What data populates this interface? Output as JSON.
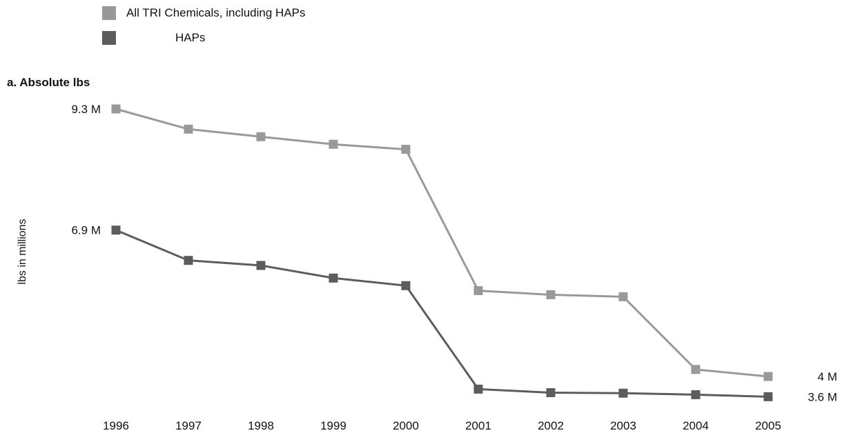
{
  "legend": {
    "all_label": "All TRI Chemicals, including HAPs",
    "haps_label": "HAPs"
  },
  "colors": {
    "all": "#999999",
    "haps": "#5c5c5c"
  },
  "chart_data": {
    "type": "line",
    "title": "",
    "subtitle": "a. Absolute lbs",
    "xlabel": "",
    "ylabel": "lbs in millions",
    "categories": [
      "1996",
      "1997",
      "1998",
      "1999",
      "2000",
      "2001",
      "2002",
      "2003",
      "2004",
      "2005"
    ],
    "ylim": [
      3.4,
      9.3
    ],
    "grid": false,
    "legend_position": "top-left",
    "series": [
      {
        "name": "All TRI Chemicals, including HAPs",
        "values": [
          9.3,
          8.9,
          8.75,
          8.6,
          8.5,
          5.7,
          5.62,
          5.58,
          4.14,
          4.0
        ],
        "end_labels": {
          "first": "9.3 M",
          "last": "4 M"
        }
      },
      {
        "name": "HAPs",
        "values": [
          6.9,
          6.3,
          6.2,
          5.95,
          5.8,
          3.75,
          3.68,
          3.67,
          3.64,
          3.6
        ],
        "end_labels": {
          "first": "6.9 M",
          "last": "3.6 M"
        }
      }
    ]
  }
}
